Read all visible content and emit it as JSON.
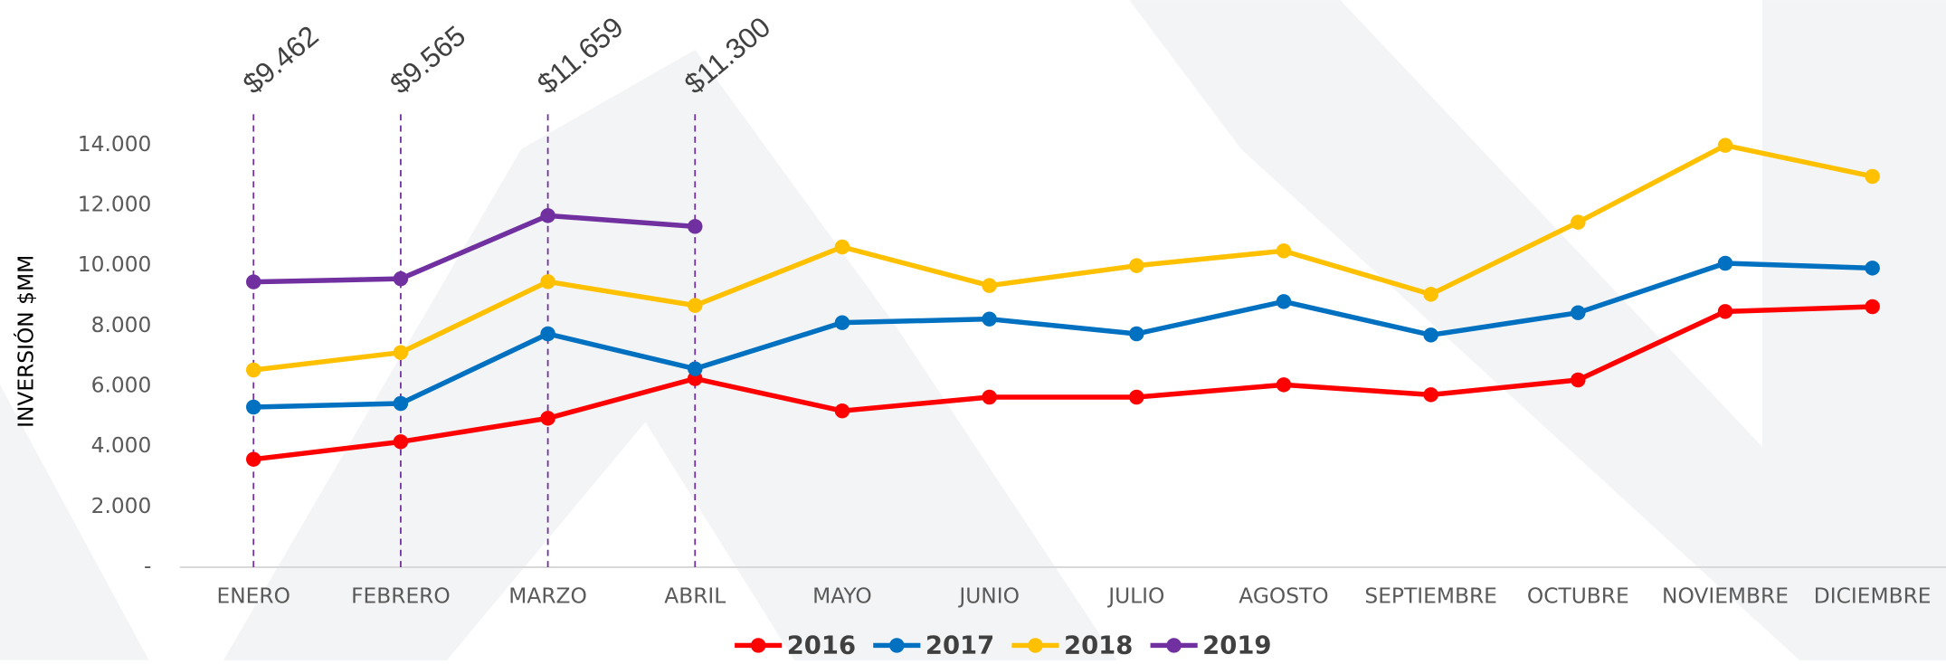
{
  "chart_data": {
    "type": "line",
    "y_label": "INVERSIÓN $MM",
    "categories": [
      "ENERO",
      "FEBRERO",
      "MARZO",
      "ABRIL",
      "MAYO",
      "JUNIO",
      "JULIO",
      "AGOSTO",
      "SEPTIEMBRE",
      "OCTUBRE",
      "NOVIEMBRE",
      "DICIEMBRE"
    ],
    "series": [
      {
        "name": "2016",
        "color": "#ff0000",
        "values": [
          3580,
          4160,
          4940,
          6255,
          5185,
          5640,
          5640,
          6050,
          5720,
          6210,
          8480,
          8640
        ]
      },
      {
        "name": "2017",
        "color": "#0070c0",
        "values": [
          5310,
          5430,
          7740,
          6580,
          8110,
          8230,
          7740,
          8810,
          7700,
          8440,
          10080,
          9920
        ]
      },
      {
        "name": "2018",
        "color": "#ffc000",
        "values": [
          6540,
          7120,
          9470,
          8680,
          10620,
          9340,
          10000,
          10490,
          9050,
          11440,
          13990,
          12960
        ]
      },
      {
        "name": "2019",
        "color": "#7030a0",
        "values": [
          9462,
          9565,
          11659,
          11300,
          null,
          null,
          null,
          null,
          null,
          null,
          null,
          null
        ],
        "value_labels": [
          "$9.462",
          "$9.565",
          "$11.659",
          "$11.300",
          null,
          null,
          null,
          null,
          null,
          null,
          null,
          null
        ]
      }
    ],
    "ylim": [
      0,
      15000
    ],
    "yticks": [
      {
        "value": 0,
        "label": "-"
      },
      {
        "value": 2000,
        "label": "2.000"
      },
      {
        "value": 4000,
        "label": "4.000"
      },
      {
        "value": 6000,
        "label": "6.000"
      },
      {
        "value": 8000,
        "label": "8.000"
      },
      {
        "value": 10000,
        "label": "10.000"
      },
      {
        "value": 12000,
        "label": "12.000"
      },
      {
        "value": 14000,
        "label": "14.000"
      }
    ],
    "grid": false,
    "legend": "bottom"
  }
}
